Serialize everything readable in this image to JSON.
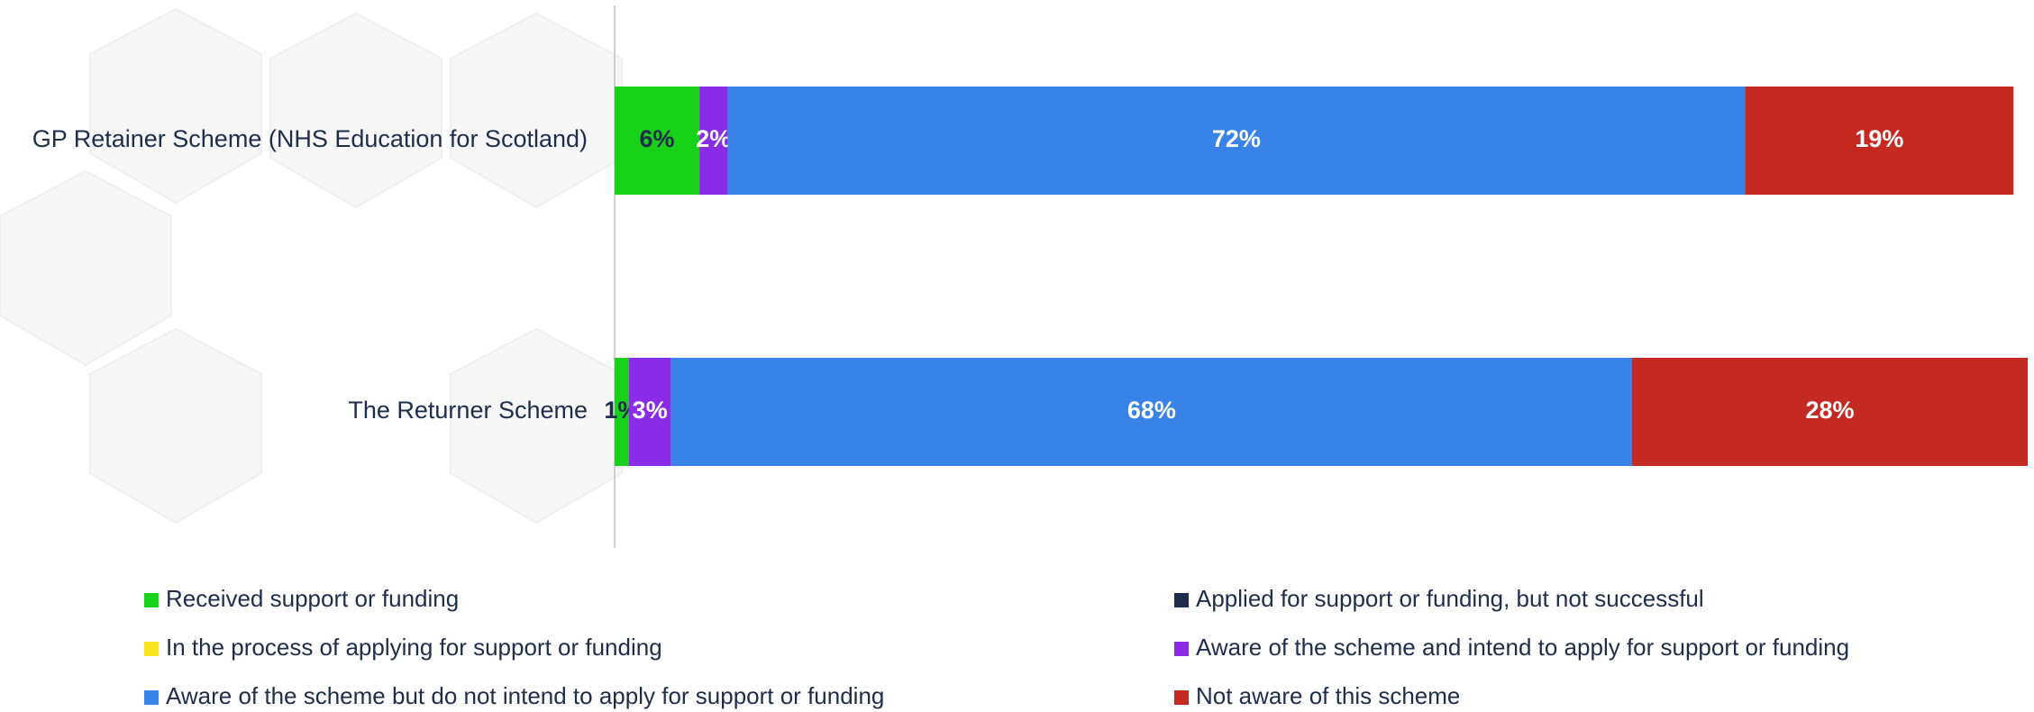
{
  "chart_data": {
    "type": "stacked-barh",
    "categories": [
      "GP Retainer Scheme (NHS Education for Scotland)",
      "The Returner Scheme"
    ],
    "xlim": [
      0,
      100
    ],
    "series": [
      {
        "name": "Received support or funding",
        "color": "#18d118",
        "label_color": "#1f2d4d",
        "values": [
          6,
          1
        ],
        "value_labels": [
          "6%",
          "1%"
        ]
      },
      {
        "name": "Applied for support or funding, but not successful",
        "color": "#1f2d4d",
        "label_color": "#ffffff",
        "values": [
          0,
          0
        ],
        "value_labels": [
          null,
          null
        ]
      },
      {
        "name": "In the process of applying for support or funding",
        "color": "#f7e51b",
        "label_color": "#1f2d4d",
        "values": [
          0,
          0
        ],
        "value_labels": [
          null,
          null
        ]
      },
      {
        "name": "Aware of the scheme and intend to apply for support or funding",
        "color": "#8a2be6",
        "label_color": "#ffffff",
        "values": [
          2,
          3
        ],
        "value_labels": [
          "2%",
          "3%"
        ]
      },
      {
        "name": "Aware of the scheme but do not intend to apply for support or funding",
        "color": "#3882e8",
        "label_color": "#ffffff",
        "values": [
          72,
          68
        ],
        "value_labels": [
          "72%",
          "68%"
        ]
      },
      {
        "name": "Not aware of this scheme",
        "color": "#c42a22",
        "label_color": "#ffffff",
        "values": [
          19,
          28
        ],
        "value_labels": [
          "19%",
          "28%"
        ]
      }
    ]
  }
}
